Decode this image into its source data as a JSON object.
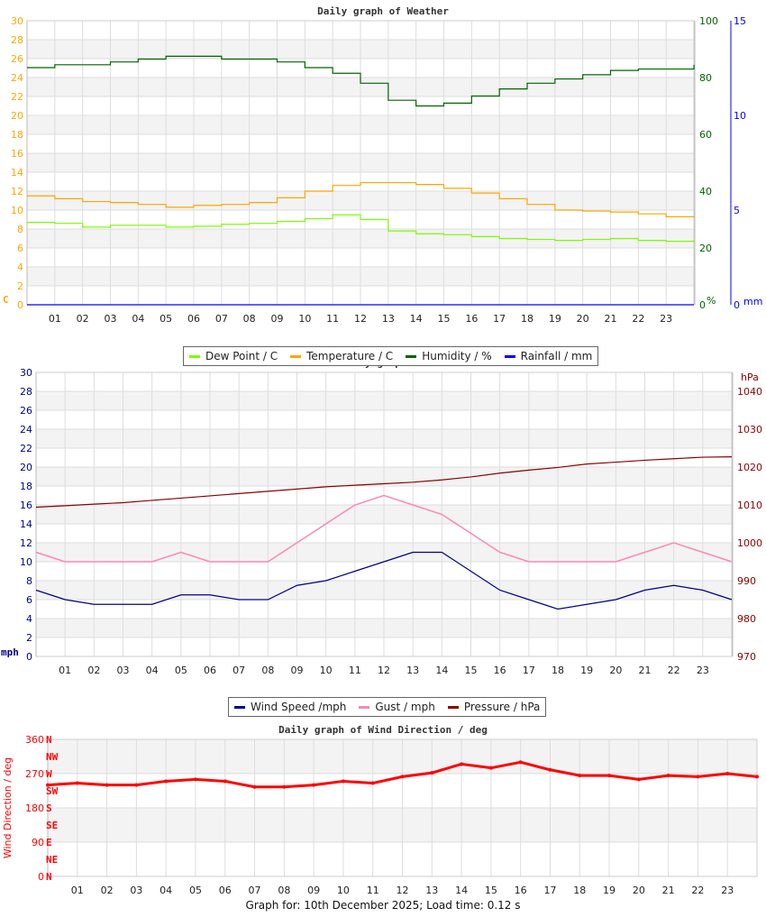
{
  "footer": "Graph for: 10th December 2025; Load time: 0.12 s",
  "chart_data": [
    {
      "type": "line",
      "title": "Daily graph of Weather",
      "x_ticks": [
        "01",
        "02",
        "03",
        "04",
        "05",
        "06",
        "07",
        "08",
        "09",
        "10",
        "11",
        "12",
        "13",
        "14",
        "15",
        "16",
        "17",
        "18",
        "19",
        "20",
        "21",
        "22",
        "23"
      ],
      "y_left": {
        "label": "C",
        "range": [
          0,
          30
        ],
        "color": "#ffa500"
      },
      "y_right": {
        "label": "%",
        "range": [
          0,
          100
        ],
        "color": "#006400"
      },
      "y_right2": {
        "label": "mm",
        "range": [
          0,
          15
        ],
        "color": "#0000ff"
      },
      "hours": [
        0,
        1,
        2,
        3,
        4,
        5,
        6,
        7,
        8,
        9,
        10,
        11,
        12,
        13,
        14,
        15,
        16,
        17,
        18,
        19,
        20,
        21,
        22,
        23,
        24
      ],
      "series": [
        {
          "name": "Dew Point / C",
          "color": "#7cfc00",
          "axis": "left",
          "values": [
            8.7,
            8.6,
            8.2,
            8.4,
            8.4,
            8.2,
            8.3,
            8.5,
            8.6,
            8.8,
            9.1,
            9.5,
            9.0,
            7.8,
            7.5,
            7.4,
            7.2,
            7.0,
            6.9,
            6.8,
            6.9,
            7.0,
            6.8,
            6.7,
            6.8
          ]
        },
        {
          "name": "Temperature / C",
          "color": "#ffa500",
          "axis": "left",
          "values": [
            11.5,
            11.2,
            10.9,
            10.8,
            10.6,
            10.3,
            10.5,
            10.6,
            10.8,
            11.3,
            12.0,
            12.6,
            12.9,
            12.9,
            12.7,
            12.3,
            11.8,
            11.2,
            10.6,
            10.0,
            9.9,
            9.8,
            9.6,
            9.3,
            9.2
          ]
        },
        {
          "name": "Humidity / %",
          "color": "#006400",
          "axis": "right",
          "values": [
            83.5,
            84.5,
            84.5,
            85.5,
            86.5,
            87.5,
            87.5,
            86.5,
            86.5,
            85.5,
            83.5,
            81.5,
            78,
            72,
            70,
            71,
            73.5,
            76,
            78,
            79.5,
            81,
            82.5,
            83,
            83,
            84.5
          ]
        },
        {
          "name": "Rainfall / mm",
          "color": "#0000ff",
          "axis": "right2",
          "values": [
            0,
            0,
            0,
            0,
            0,
            0,
            0,
            0,
            0,
            0,
            0,
            0,
            0,
            0,
            0,
            0,
            0,
            0,
            0,
            0,
            0,
            0,
            0,
            0,
            0
          ]
        }
      ],
      "grid": true,
      "legend": "bottom"
    },
    {
      "type": "line",
      "title": "Daily graph of",
      "x_ticks": [
        "01",
        "02",
        "03",
        "04",
        "05",
        "06",
        "07",
        "08",
        "09",
        "10",
        "11",
        "12",
        "13",
        "14",
        "15",
        "16",
        "17",
        "18",
        "19",
        "20",
        "21",
        "22",
        "23"
      ],
      "y_left": {
        "label": "mph",
        "range": [
          0,
          30
        ],
        "color": "#00008b"
      },
      "y_right": {
        "label": "hPa",
        "range": [
          970,
          1045
        ],
        "ticks": [
          970,
          980,
          990,
          1000,
          1010,
          1020,
          1030,
          1040
        ],
        "color": "#8b0000"
      },
      "hours": [
        0,
        1,
        2,
        3,
        4,
        5,
        6,
        7,
        8,
        9,
        10,
        11,
        12,
        13,
        14,
        15,
        16,
        17,
        18,
        19,
        20,
        21,
        22,
        23,
        24
      ],
      "series": [
        {
          "name": "Wind Speed /mph",
          "color": "#00008b",
          "axis": "left",
          "values": [
            7,
            6,
            5.5,
            5.5,
            5.5,
            6.5,
            6.5,
            6,
            6,
            7.5,
            8,
            9,
            10,
            11,
            11,
            9,
            7,
            6,
            5,
            5.5,
            6,
            7,
            7.5,
            7,
            6
          ]
        },
        {
          "name": "Gust / mph",
          "color": "#ff88aa",
          "axis": "left",
          "values": [
            11,
            10,
            10,
            10,
            10,
            11,
            10,
            10,
            10,
            12,
            14,
            16,
            17,
            16,
            15,
            13,
            11,
            10,
            10,
            10,
            10,
            11,
            12,
            11,
            10
          ]
        },
        {
          "name": "Pressure / hPa",
          "color": "#8b0000",
          "axis": "right",
          "values": [
            1009.4,
            1009.8,
            1010.2,
            1010.6,
            1011.2,
            1011.8,
            1012.4,
            1013,
            1013.6,
            1014.2,
            1014.8,
            1015.2,
            1015.6,
            1016,
            1016.6,
            1017.4,
            1018.4,
            1019.2,
            1019.9,
            1020.8,
            1021.3,
            1021.8,
            1022.2,
            1022.6,
            1022.7
          ]
        }
      ],
      "grid": true,
      "legend": "bottom"
    },
    {
      "type": "scatter",
      "title": "Daily graph of Wind Direction / deg",
      "ylabel": "Wind Direction / deg",
      "x_ticks": [
        "01",
        "02",
        "03",
        "04",
        "05",
        "06",
        "07",
        "08",
        "09",
        "10",
        "11",
        "12",
        "13",
        "14",
        "15",
        "16",
        "17",
        "18",
        "19",
        "20",
        "21",
        "22",
        "23"
      ],
      "y_left": {
        "range": [
          0,
          360
        ],
        "ticks": [
          0,
          90,
          180,
          270,
          360
        ],
        "color": "#ff0000"
      },
      "compass": [
        "N",
        "NE",
        "E",
        "SE",
        "S",
        "SW",
        "W",
        "NW",
        "N"
      ],
      "hours": [
        0,
        1,
        2,
        3,
        4,
        5,
        6,
        7,
        8,
        9,
        10,
        11,
        12,
        13,
        14,
        15,
        16,
        17,
        18,
        19,
        20,
        21,
        22,
        23,
        24
      ],
      "series": [
        {
          "color": "#ff0000",
          "values": [
            240,
            245,
            240,
            240,
            250,
            255,
            250,
            235,
            235,
            240,
            250,
            245,
            262,
            272,
            295,
            285,
            300,
            280,
            265,
            265,
            255,
            265,
            262,
            270,
            262
          ]
        }
      ],
      "grid": true
    }
  ]
}
